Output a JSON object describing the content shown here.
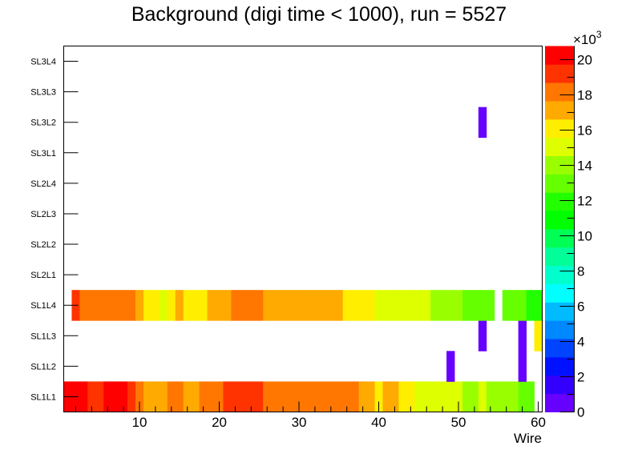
{
  "chart_data": {
    "type": "heatmap",
    "title": "Background (digi time < 1000), run = 5527",
    "xlabel": "Wire",
    "ylabel": "",
    "xlim": [
      0.5,
      60.5
    ],
    "x_ticks": [
      10,
      20,
      30,
      40,
      50,
      60
    ],
    "layers": [
      "SL1L1",
      "SL1L2",
      "SL1L3",
      "SL1L4",
      "SL2L1",
      "SL2L2",
      "SL2L3",
      "SL2L4",
      "SL3L1",
      "SL3L2",
      "SL3L3",
      "SL3L4"
    ],
    "zlim": [
      0,
      20770
    ],
    "z_ticks": [
      0,
      2,
      4,
      6,
      8,
      10,
      12,
      14,
      16,
      18,
      20
    ],
    "z_multiplier_label": "×10",
    "z_multiplier_exp": "3",
    "palette": [
      "#6600ff",
      "#3300ff",
      "#0011ff",
      "#0044ff",
      "#0088ff",
      "#00bbff",
      "#00ffff",
      "#00ffcc",
      "#00ff99",
      "#00ff55",
      "#00ff00",
      "#22ff00",
      "#66ff00",
      "#99ff00",
      "#ddff00",
      "#ffee00",
      "#ffaa00",
      "#ff7700",
      "#ff3300",
      "#ff0000"
    ],
    "values": {
      "SL1L1": [
        20200,
        20200,
        20200,
        19200,
        19200,
        20200,
        20200,
        20200,
        19200,
        18100,
        17100,
        17100,
        17100,
        18100,
        18100,
        17100,
        17100,
        18100,
        18100,
        18100,
        19200,
        19200,
        19200,
        19200,
        19200,
        18100,
        18100,
        18100,
        18100,
        18100,
        18100,
        18100,
        18100,
        18100,
        18100,
        18100,
        18100,
        17100,
        17100,
        16100,
        17100,
        17100,
        16100,
        16100,
        15000,
        15000,
        15000,
        15000,
        15000,
        15000,
        14000,
        14000,
        15000,
        14000,
        14000,
        14000,
        14000,
        13000,
        13000,
        null
      ],
      "SL1L4": [
        null,
        19200,
        18100,
        18100,
        18100,
        18100,
        18100,
        18100,
        18100,
        17100,
        16100,
        16100,
        15000,
        16100,
        17100,
        16100,
        16100,
        16100,
        17100,
        17100,
        17100,
        18100,
        18100,
        18100,
        18100,
        17100,
        17100,
        17100,
        17100,
        17100,
        17100,
        17100,
        17100,
        17100,
        17100,
        16100,
        16100,
        16100,
        16100,
        15000,
        15000,
        15000,
        15000,
        15000,
        15000,
        15000,
        14000,
        14000,
        14000,
        14000,
        13000,
        13000,
        13000,
        13000,
        null,
        13000,
        13000,
        13000,
        12000,
        12000
      ],
      "SL1L3": {
        "53": 300,
        "58": 300,
        "60": 16100
      },
      "SL1L2": {
        "49": 300,
        "58": 300
      },
      "SL3L2": {
        "53": 300
      }
    }
  }
}
